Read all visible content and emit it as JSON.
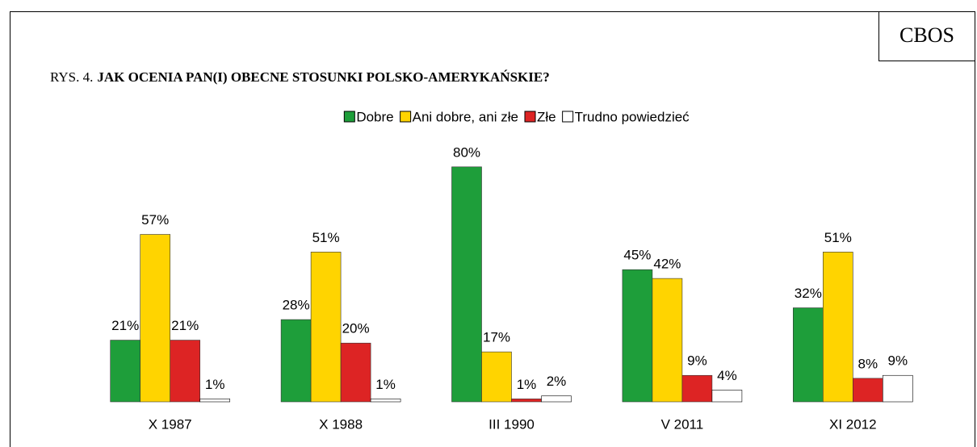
{
  "source": "CBOS",
  "chart_data": {
    "type": "bar",
    "figure_label": "RYS. 4.",
    "title": "JAK OCENIA PAN(I) OBECNE STOSUNKI POLSKO-AMERYKAŃSKIE?",
    "categories": [
      "X 1987",
      "X 1988",
      "III 1990",
      "V 2011",
      "XI 2012"
    ],
    "series": [
      {
        "name": "Dobre",
        "color": "#1e9e3a",
        "values": [
          21,
          28,
          80,
          45,
          32
        ],
        "value_labels": [
          "21%",
          "28%",
          "80%",
          "45%",
          "32%"
        ]
      },
      {
        "name": "Ani dobre, ani złe",
        "color": "#ffd400",
        "values": [
          57,
          51,
          17,
          42,
          51
        ],
        "value_labels": [
          "57%",
          "51%",
          "17%",
          "42%",
          "51%"
        ]
      },
      {
        "name": "Złe",
        "color": "#dd2424",
        "values": [
          21,
          20,
          1,
          9,
          8
        ],
        "value_labels": [
          "21%",
          "20%",
          "1%",
          "9%",
          "8%"
        ]
      },
      {
        "name": "Trudno powiedzieć",
        "color": "#ffffff",
        "values": [
          1,
          1,
          2,
          4,
          9
        ],
        "value_labels": [
          "1%",
          "1%",
          "2%",
          "4%",
          "9%"
        ]
      }
    ],
    "ylim": [
      0,
      100
    ],
    "legend": "top"
  }
}
